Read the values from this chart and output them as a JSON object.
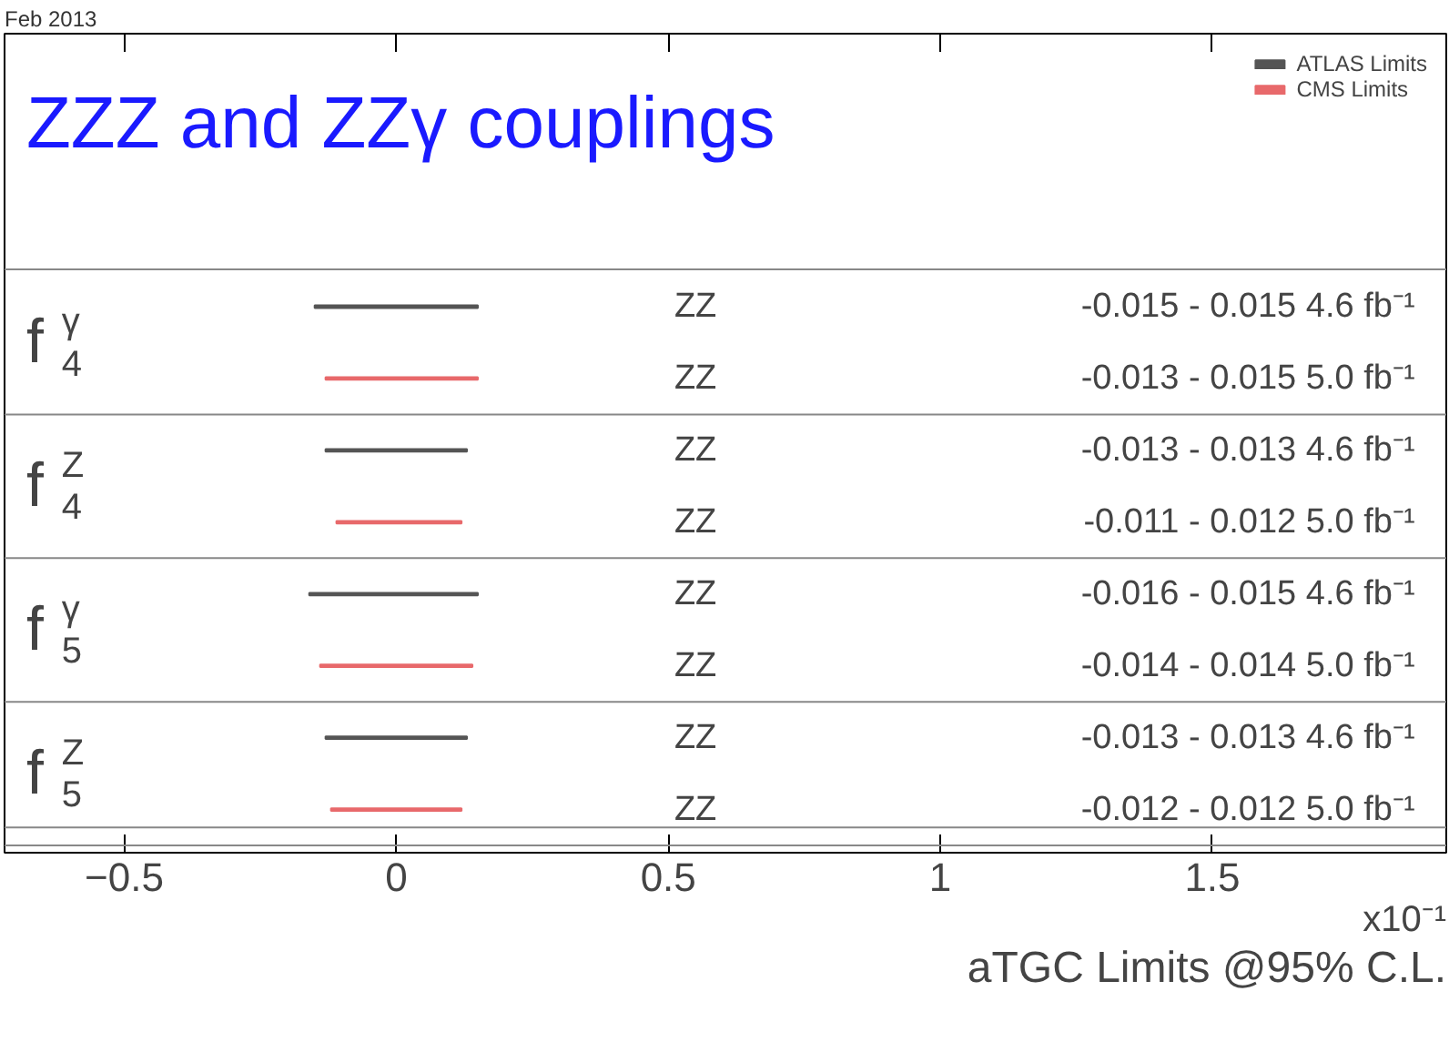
{
  "chart_data": {
    "type": "bar",
    "orientation": "horizontal",
    "title": "ZZZ and ZZγ couplings",
    "xlabel": "aTGC Limits @95% C.L.",
    "categories": [
      "ZZ",
      "ZZ",
      "ZZ",
      "ZZ",
      "ZZ",
      "ZZ",
      "ZZ",
      "ZZ"
    ],
    "series": [
      {
        "name": "ATLAS Limits",
        "color": "#555555",
        "base": [
          -0.15,
          null,
          -0.13,
          null,
          -0.16,
          null,
          -0.13,
          null
        ],
        "values": [
          0.3,
          null,
          0.26,
          null,
          0.31,
          null,
          0.26,
          null
        ]
      },
      {
        "name": "CMS Limits",
        "color": "#e8696b",
        "base": [
          null,
          -0.13,
          null,
          -0.11,
          null,
          -0.14,
          null,
          -0.12
        ],
        "values": [
          null,
          0.28,
          null,
          0.23,
          null,
          0.28,
          null,
          0.24
        ]
      }
    ],
    "value_labels": [
      "-0.015 - 0.015  4.6 fb⁻¹",
      "-0.013 - 0.015  5.0 fb⁻¹",
      "-0.013 - 0.013  4.6 fb⁻¹",
      "-0.011 - 0.012  5.0 fb⁻¹",
      "-0.016 - 0.015  4.6 fb⁻¹",
      "-0.014 - 0.014  5.0 fb⁻¹",
      "-0.013 - 0.013  4.6 fb⁻¹",
      "-0.012 - 0.012  5.0 fb⁻¹"
    ],
    "annotations": [
      "Feb 2013",
      "x10⁻¹",
      "f$^{γ}$$_{4}$",
      "f$^{Z}$$_{4}$",
      "f$^{γ}$$_{5}$",
      "f$^{Z}$$_{5}$"
    ],
    "xlim": [
      -0.72,
      1.93
    ],
    "xticks": [
      -0.5,
      0,
      0.5,
      1,
      1.5
    ],
    "grid": false,
    "legend": "top right"
  }
}
